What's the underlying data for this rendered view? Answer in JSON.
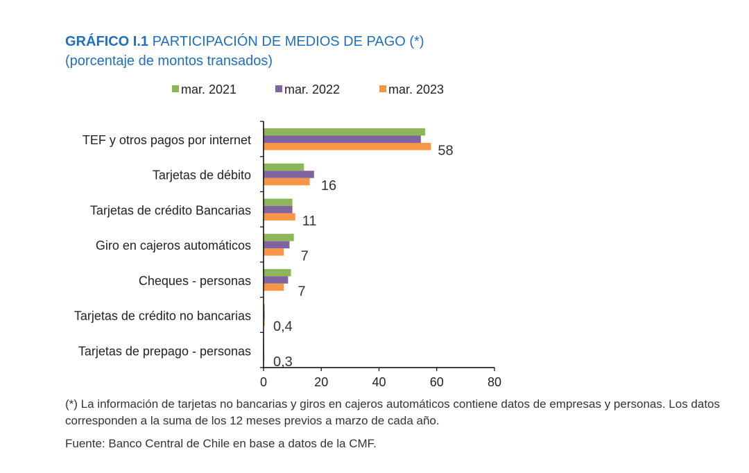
{
  "header": {
    "code": "GRÁFICO I.1",
    "title": "PARTICIPACIÓN DE MEDIOS DE PAGO (*)",
    "subtitle": "(porcentaje de montos transados)"
  },
  "chart_data": {
    "type": "bar",
    "orientation": "horizontal",
    "categories": [
      "TEF y otros pagos por internet",
      "Tarjetas de débito",
      "Tarjetas de crédito Bancarias",
      "Giro en cajeros automáticos",
      "Cheques - personas",
      "Tarjetas de crédito no bancarias",
      "Tarjetas de prepago - personas"
    ],
    "series": [
      {
        "name": "mar. 2021",
        "color": "#8db65a",
        "values": [
          56,
          14,
          10,
          10.5,
          9.5,
          0.4,
          0.1
        ]
      },
      {
        "name": "mar. 2022",
        "color": "#8064a2",
        "values": [
          54.5,
          17.5,
          10,
          9,
          8.5,
          0.4,
          0.2
        ]
      },
      {
        "name": "mar. 2023",
        "color": "#f79646",
        "values": [
          58,
          16,
          11,
          7,
          7,
          0.4,
          0.3
        ]
      }
    ],
    "data_labels": [
      "58",
      "16",
      "11",
      "7",
      "7",
      "0,4",
      "0,3"
    ],
    "xlim": [
      0,
      80
    ],
    "xticks": [
      "0",
      "20",
      "40",
      "60",
      "80"
    ],
    "legend_position": "top"
  },
  "notes": "(*) La información de tarjetas no bancarias y giros en cajeros automáticos contiene datos de empresas y personas. Los datos corresponden a la suma de los 12 meses previos a marzo de cada año.",
  "source": "Fuente: Banco Central de Chile en base a datos de la CMF."
}
